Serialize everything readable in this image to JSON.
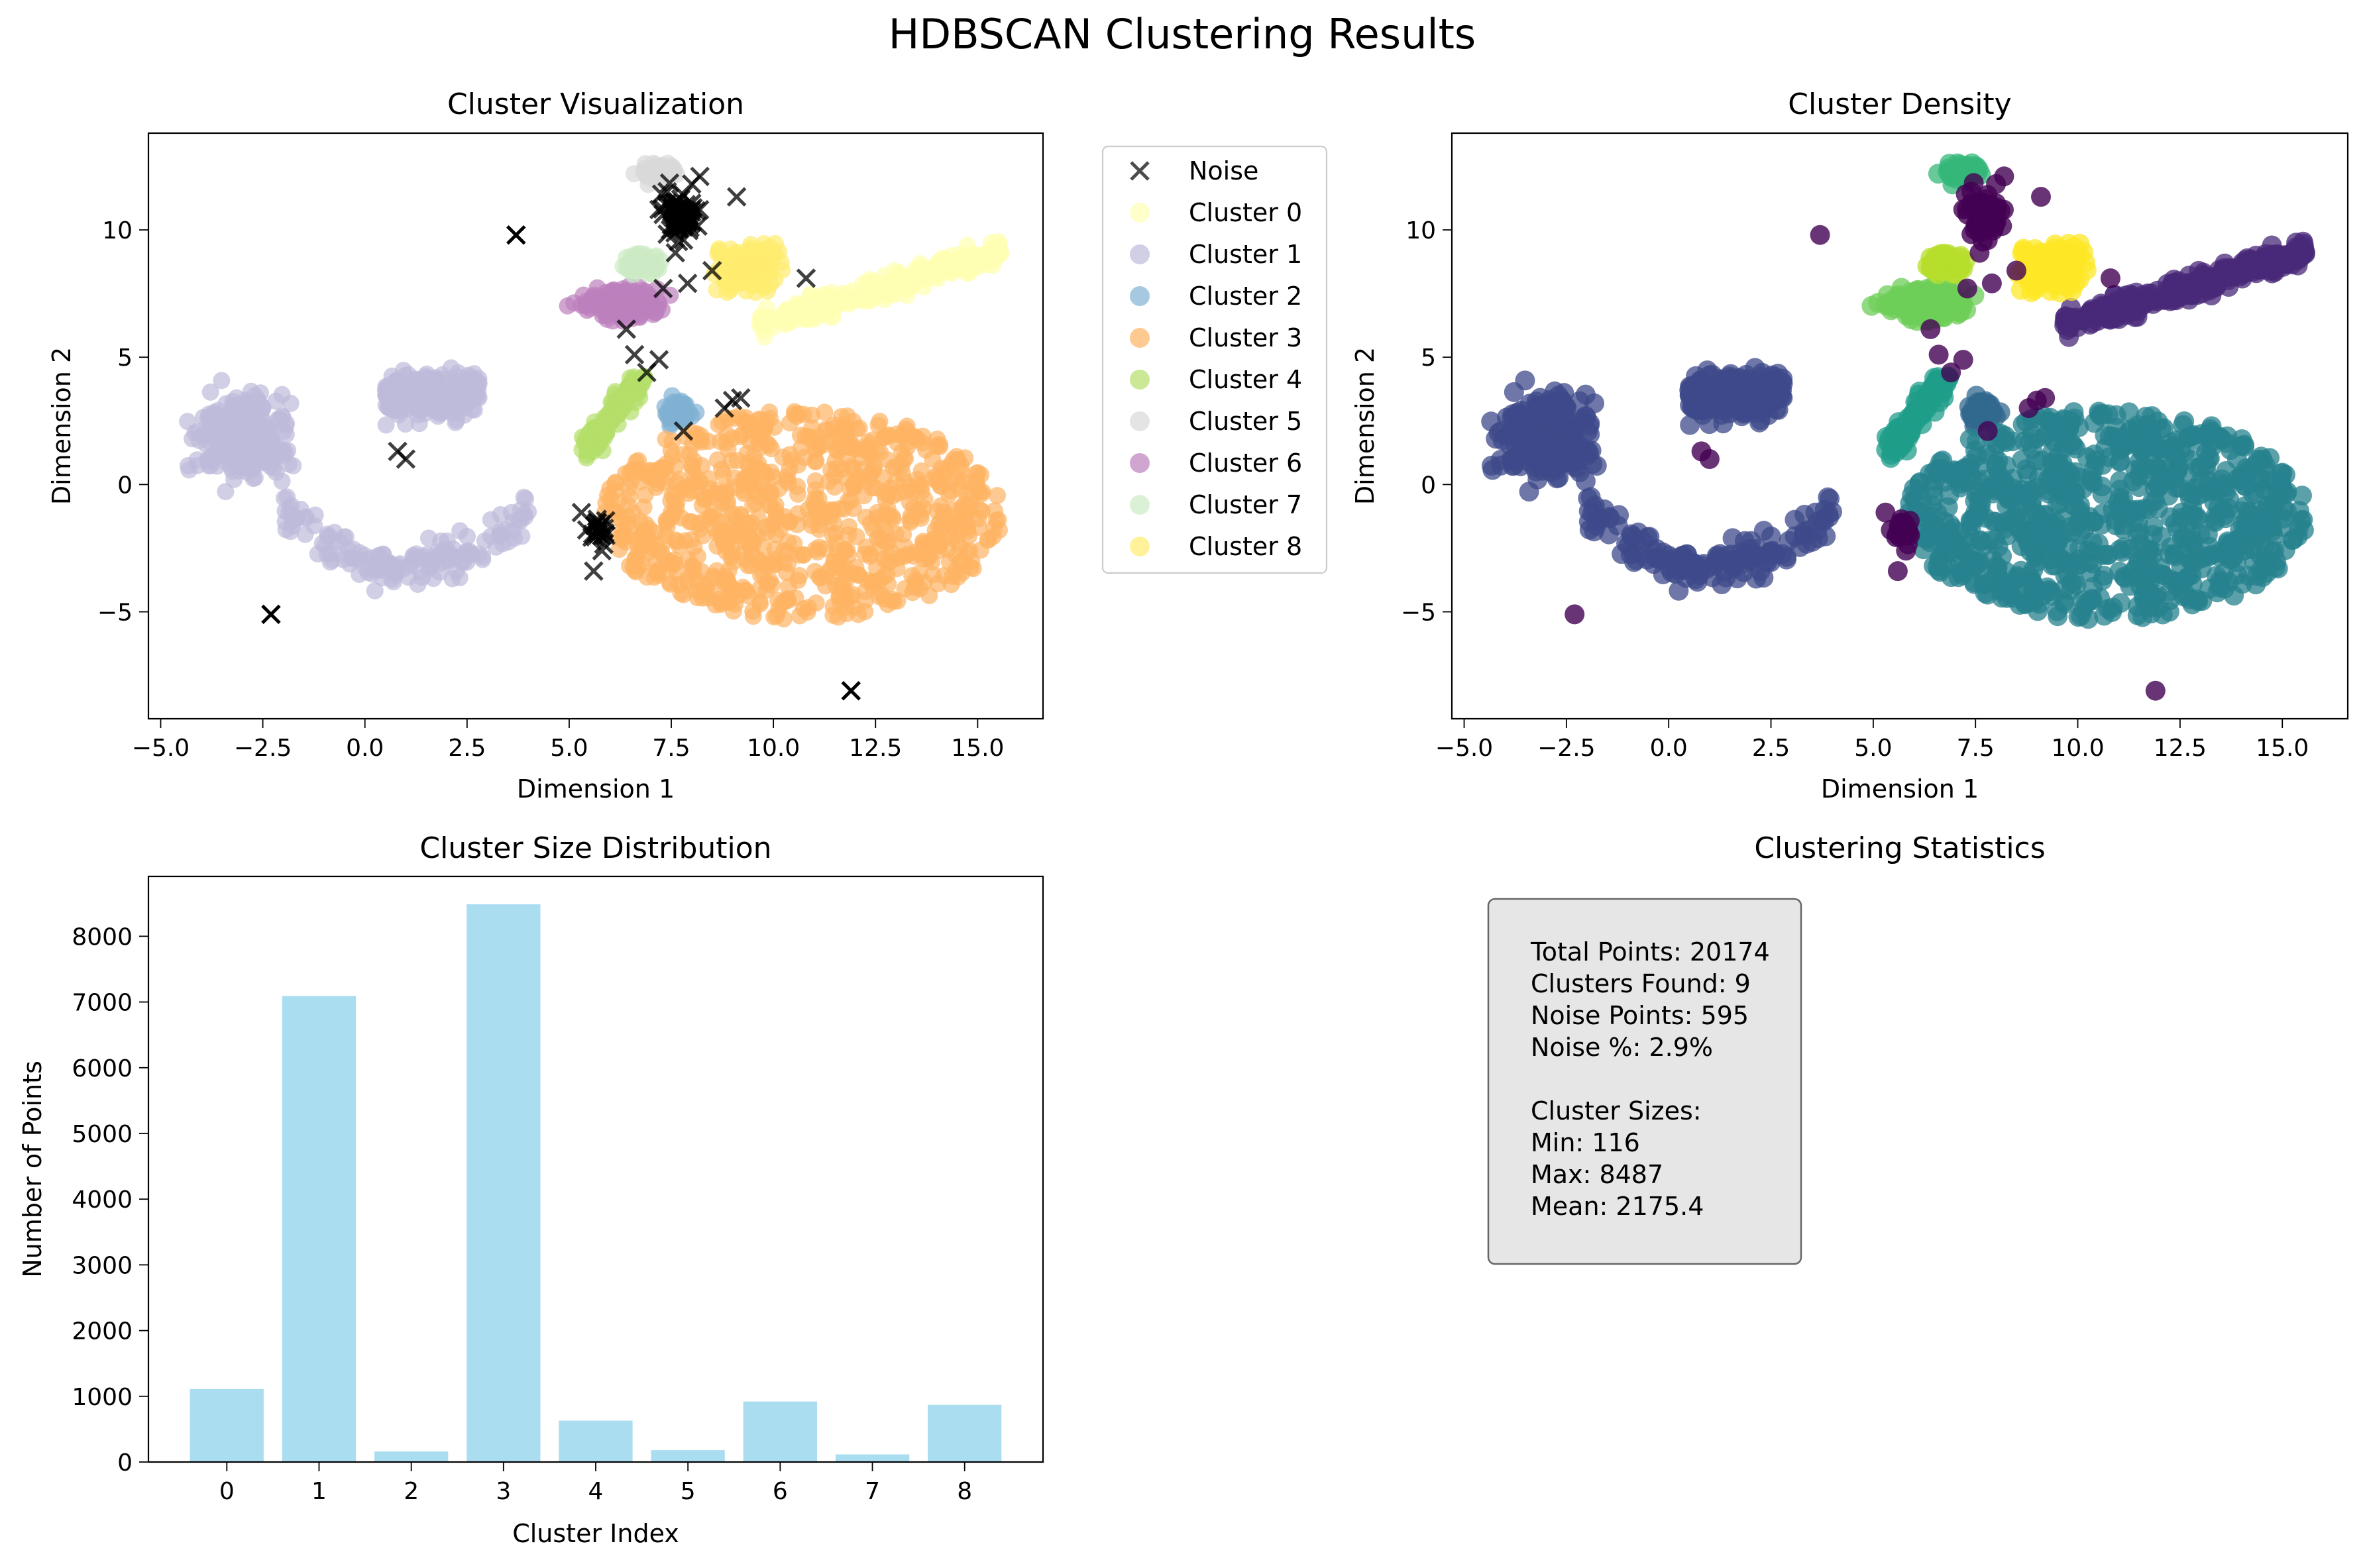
{
  "figure_title": "HDBSCAN Clustering Results",
  "colors": {
    "noise_marker": "#000000",
    "bar_fill": "#87ceeb",
    "stats_box_fill": "#e6e6e6",
    "cluster_palette": [
      "#ffffb3",
      "#bebada",
      "#80b1d3",
      "#fdb462",
      "#b3de69",
      "#d9d9d9",
      "#bc80bd",
      "#ccebc5",
      "#ffed6f"
    ],
    "viridis_palette": [
      "#440154",
      "#482878",
      "#3e4989",
      "#31688e",
      "#26828e",
      "#1f9e89",
      "#35b779",
      "#6ece58",
      "#b5de2b",
      "#fde725"
    ]
  },
  "chart_data": [
    {
      "id": "cluster_visualization",
      "type": "scatter",
      "title": "Cluster Visualization",
      "xlabel": "Dimension 1",
      "ylabel": "Dimension 2",
      "xlim": [
        -5.3,
        16.6
      ],
      "ylim": [
        -9.2,
        13.8
      ],
      "xticks": [
        "−5.0",
        "−2.5",
        "0.0",
        "2.5",
        "5.0",
        "7.5",
        "10.0",
        "12.5",
        "15.0"
      ],
      "xtick_values": [
        -5,
        -2.5,
        0,
        2.5,
        5,
        7.5,
        10,
        12.5,
        15
      ],
      "yticks": [
        "−5",
        "0",
        "5",
        "10"
      ],
      "ytick_values": [
        -5,
        0,
        5,
        10
      ],
      "legend_position": "outside-right",
      "legend": [
        "Noise",
        "Cluster 0",
        "Cluster 1",
        "Cluster 2",
        "Cluster 3",
        "Cluster 4",
        "Cluster 5",
        "Cluster 6",
        "Cluster 7",
        "Cluster 8"
      ],
      "noise_points": [
        [
          -2.3,
          -5.1
        ],
        [
          3.7,
          9.8
        ],
        [
          11.9,
          -8.1
        ],
        [
          0.8,
          1.3
        ],
        [
          1.0,
          1.0
        ],
        [
          5.3,
          -1.1
        ],
        [
          5.7,
          -1.5
        ],
        [
          5.6,
          -3.4
        ],
        [
          5.8,
          -2.6
        ],
        [
          5.9,
          -2.0
        ],
        [
          7.2,
          10.8
        ],
        [
          7.5,
          10.2
        ],
        [
          7.8,
          9.6
        ],
        [
          8.0,
          11.8
        ],
        [
          8.2,
          12.1
        ],
        [
          9.1,
          11.3
        ],
        [
          7.4,
          11.5
        ],
        [
          7.6,
          9.1
        ],
        [
          7.3,
          7.7
        ],
        [
          7.9,
          7.9
        ],
        [
          8.5,
          8.4
        ],
        [
          6.4,
          6.1
        ],
        [
          6.6,
          5.1
        ],
        [
          7.2,
          4.9
        ],
        [
          6.9,
          4.4
        ],
        [
          9.0,
          3.3
        ],
        [
          9.2,
          3.4
        ],
        [
          8.8,
          3.0
        ],
        [
          7.8,
          2.1
        ],
        [
          10.8,
          8.1
        ]
      ],
      "clusters": [
        {
          "name": "Cluster 0",
          "shapes": [
            {
              "x": [
                9.2,
                15.8
              ],
              "y": [
                5.8,
                9.4
              ],
              "spread": 0.75,
              "slope": 0.52
            }
          ]
        },
        {
          "name": "Cluster 1",
          "shapes": [
            {
              "x": [
                -4.3,
                3.1
              ],
              "y": [
                -4.4,
                5.9
              ],
              "form": "arc"
            }
          ]
        },
        {
          "name": "Cluster 2",
          "shapes": [
            {
              "x": [
                7.1,
                8.4
              ],
              "y": [
                1.9,
                3.9
              ],
              "form": "blob"
            }
          ]
        },
        {
          "name": "Cluster 3",
          "shapes": [
            {
              "x": [
                5.8,
                15.8
              ],
              "y": [
                -5.6,
                3.1
              ],
              "form": "ellipse"
            }
          ]
        },
        {
          "name": "Cluster 4",
          "shapes": [
            {
              "x": [
                4.8,
                7.0
              ],
              "y": [
                0.5,
                4.6
              ],
              "form": "blob"
            }
          ]
        },
        {
          "name": "Cluster 5",
          "shapes": [
            {
              "x": [
                6.3,
                8.3
              ],
              "y": [
                11.2,
                13.2
              ],
              "form": "blob"
            }
          ]
        },
        {
          "name": "Cluster 6",
          "shapes": [
            {
              "x": [
                4.5,
                8.3
              ],
              "y": [
                5.8,
                8.6
              ],
              "form": "ellipse"
            }
          ]
        },
        {
          "name": "Cluster 7",
          "shapes": [
            {
              "x": [
                5.8,
                7.9
              ],
              "y": [
                7.9,
                9.5
              ],
              "form": "blob"
            }
          ]
        },
        {
          "name": "Cluster 8",
          "shapes": [
            {
              "x": [
                7.9,
                10.9
              ],
              "y": [
                6.4,
                10.4
              ],
              "form": "ellipse"
            }
          ]
        }
      ]
    },
    {
      "id": "cluster_density",
      "type": "scatter",
      "title": "Cluster Density",
      "xlabel": "Dimension 1",
      "ylabel": "Dimension 2",
      "xlim": [
        -5.3,
        16.6
      ],
      "ylim": [
        -9.2,
        13.8
      ],
      "xticks": [
        "−5.0",
        "−2.5",
        "0.0",
        "2.5",
        "5.0",
        "7.5",
        "10.0",
        "12.5",
        "15.0"
      ],
      "xtick_values": [
        -5,
        -2.5,
        0,
        2.5,
        5,
        7.5,
        10,
        12.5,
        15
      ],
      "yticks": [
        "−5",
        "0",
        "5",
        "10"
      ],
      "ytick_values": [
        -5,
        0,
        5,
        10
      ],
      "colormap": "viridis",
      "cluster_colors": [
        "#482878",
        "#3e4989",
        "#31688e",
        "#26828e",
        "#1f9e89",
        "#35b779",
        "#6ece58",
        "#b5de2b",
        "#fde725"
      ]
    },
    {
      "id": "cluster_size_distribution",
      "type": "bar",
      "title": "Cluster Size Distribution",
      "xlabel": "Cluster Index",
      "ylabel": "Number of Points",
      "categories": [
        "0",
        "1",
        "2",
        "3",
        "4",
        "5",
        "6",
        "7",
        "8"
      ],
      "values": [
        1110,
        7090,
        160,
        8487,
        630,
        180,
        920,
        116,
        870
      ],
      "ylim": [
        0,
        8911
      ],
      "yticks": [
        "0",
        "1000",
        "2000",
        "3000",
        "4000",
        "5000",
        "6000",
        "7000",
        "8000"
      ],
      "ytick_values": [
        0,
        1000,
        2000,
        3000,
        4000,
        5000,
        6000,
        7000,
        8000
      ]
    }
  ],
  "stats_panel": {
    "title": "Clustering Statistics",
    "lines": [
      "Total Points: 20174",
      "Clusters Found: 9",
      "Noise Points: 595",
      "Noise %: 2.9%",
      "",
      "Cluster Sizes:",
      "Min: 116",
      "Max: 8487",
      "Mean: 2175.4"
    ]
  }
}
